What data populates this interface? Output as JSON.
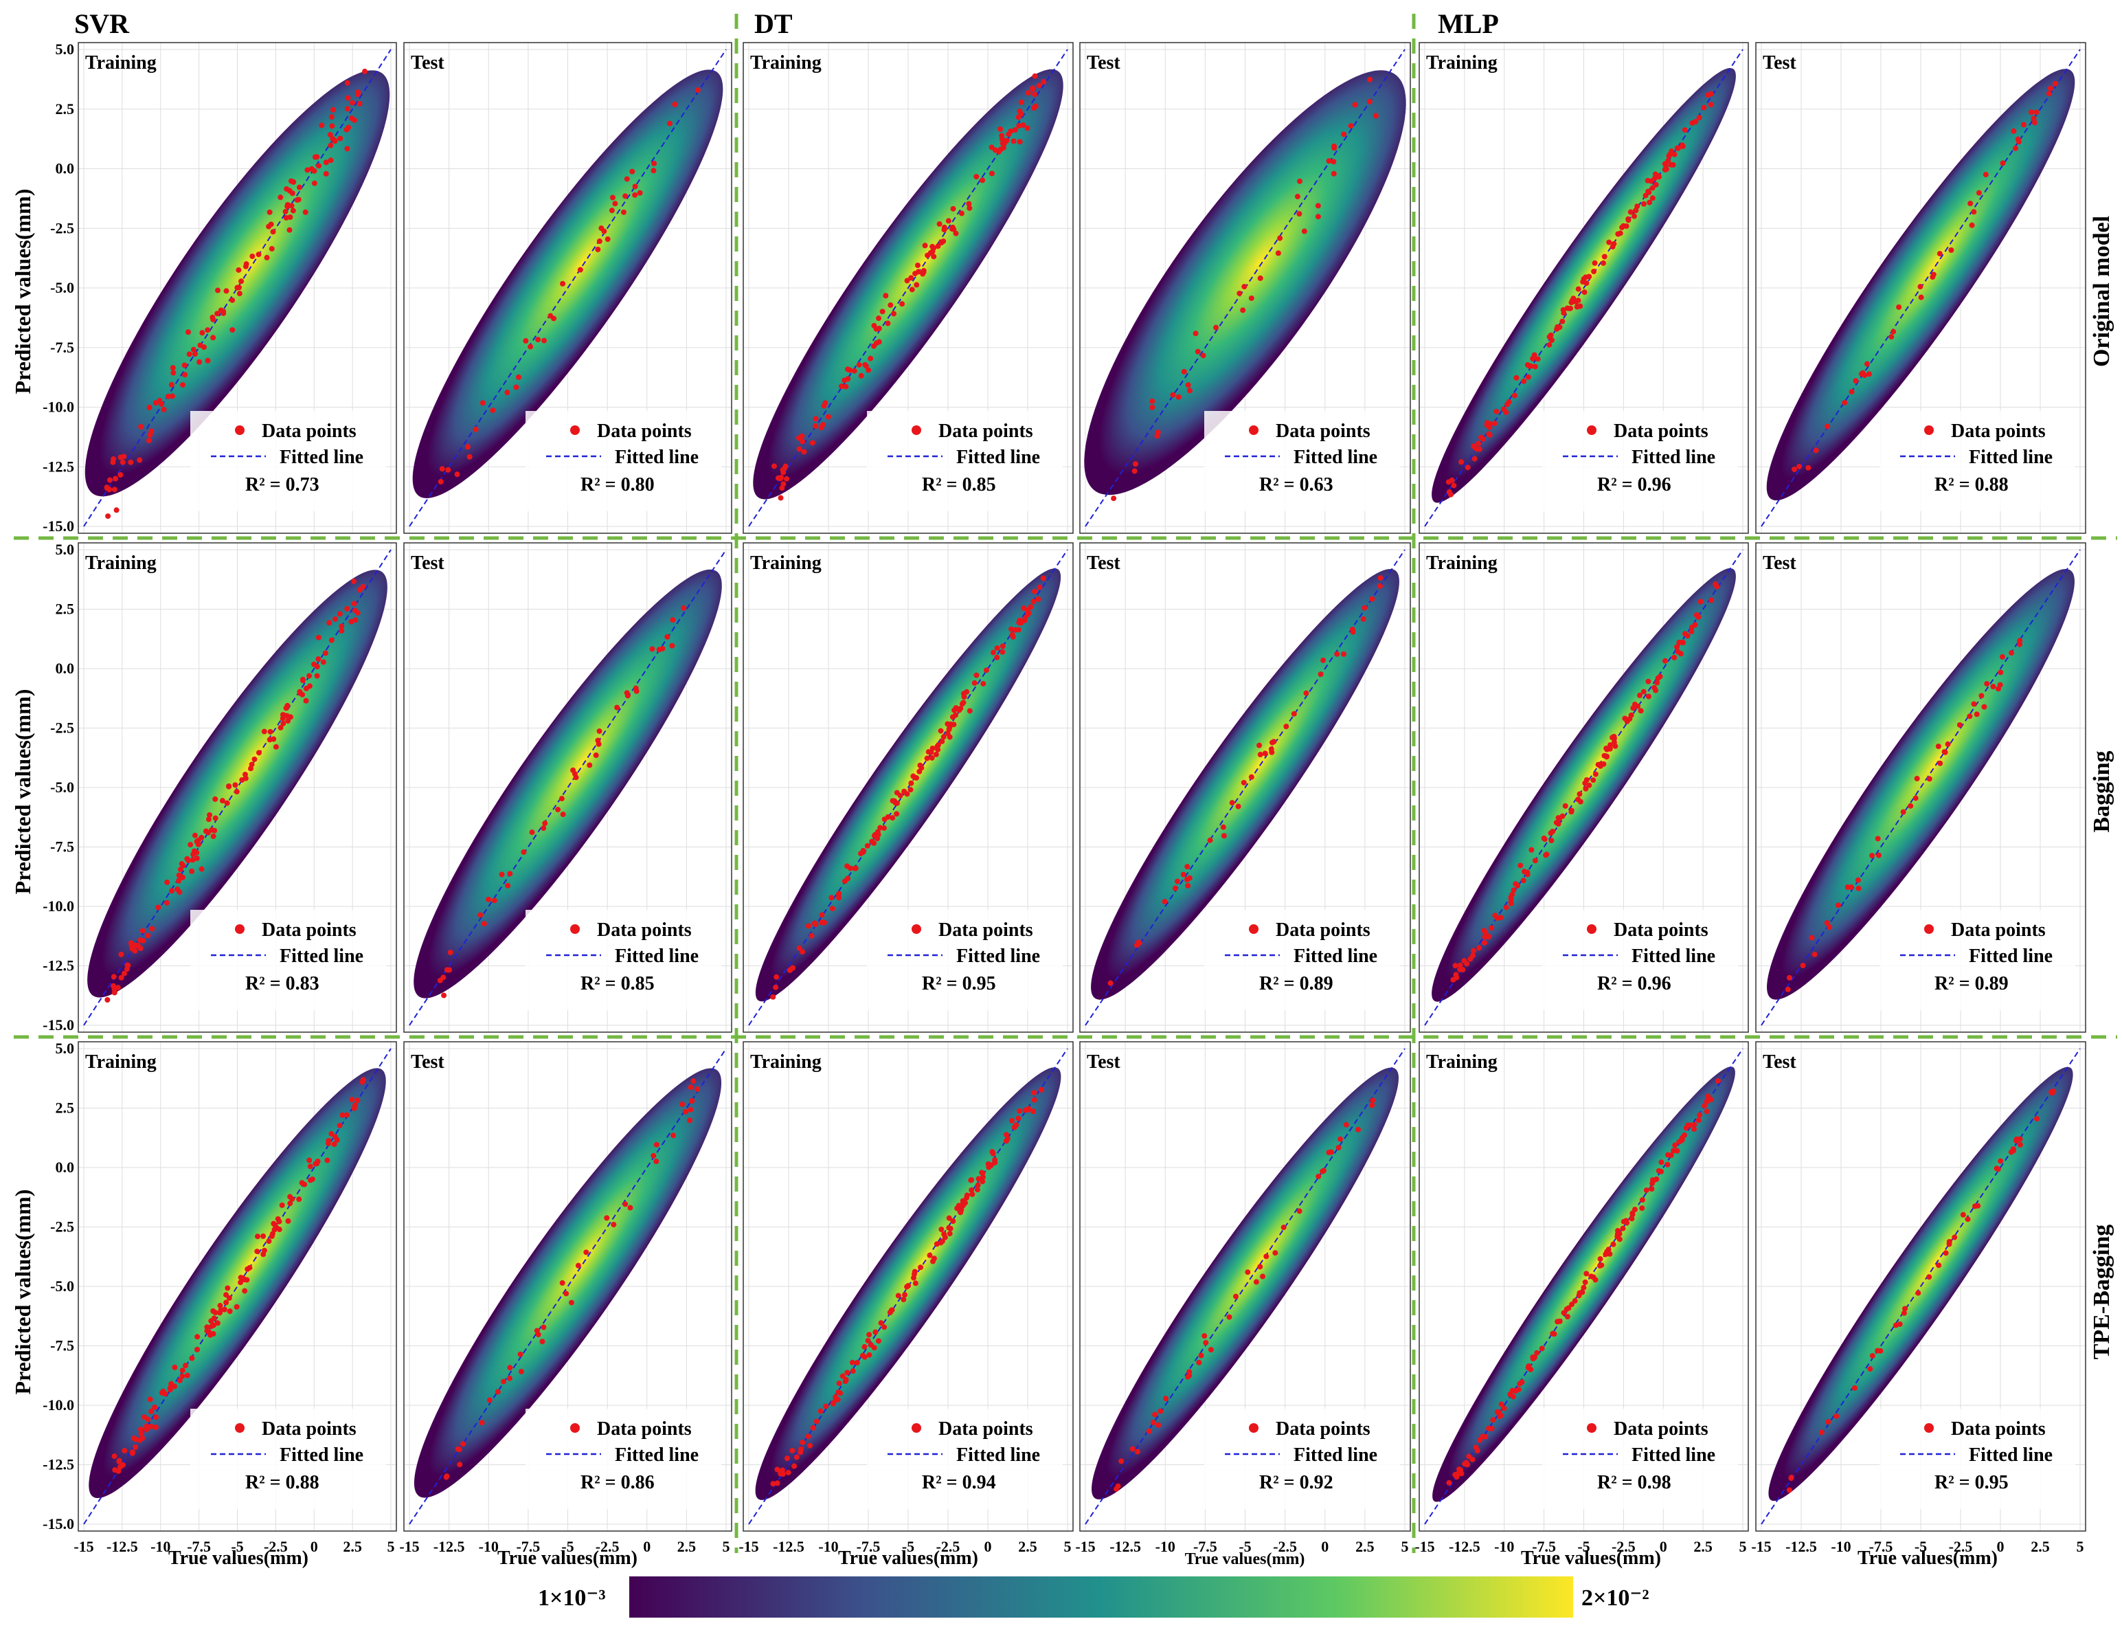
{
  "figure": {
    "model_titles": [
      "SVR",
      "DT",
      "MLP"
    ],
    "row_titles": [
      "Original model",
      "Bagging",
      "TPE-Bagging"
    ],
    "y_axis_label": "Predicted values(mm)",
    "x_axis_label": "True values(mm)",
    "colorbar": {
      "min_label": "1×10⁻³",
      "max_label": "2×10⁻²",
      "colormap": "viridis"
    },
    "colors": {
      "data_point": "#e8161b",
      "fitted_line": "#1f22d6",
      "separator": "#74b843",
      "viridis": [
        "#440154",
        "#3b528b",
        "#21918c",
        "#5ec962",
        "#fde725"
      ]
    },
    "legend": {
      "points_label": "Data points",
      "line_label": "Fitted line"
    }
  },
  "chart_data": {
    "type": "scatter",
    "title": "",
    "xlabel": "True values(mm)",
    "ylabel": "Predicted values(mm)",
    "xlim": [
      -15,
      5
    ],
    "ylim": [
      -15,
      5
    ],
    "x_ticks": [
      "-15",
      "-12.5",
      "-10",
      "-7.5",
      "-5",
      "-2.5",
      "0",
      "2.5",
      "5"
    ],
    "y_ticks": [
      "5.0",
      "2.5",
      "0.0",
      "-2.5",
      "-5.0",
      "-7.5",
      "-10.0",
      "-12.5",
      "-15.0"
    ],
    "panels": [
      {
        "model": "SVR",
        "row": "Original model",
        "subset": "Training",
        "r2": 0.73,
        "r2_text": "R² = 0.73",
        "spread": 1.9,
        "n_points": 120
      },
      {
        "model": "SVR",
        "row": "Original model",
        "subset": "Test",
        "r2": 0.8,
        "r2_text": "R² = 0.80",
        "spread": 1.6,
        "n_points": 40
      },
      {
        "model": "DT",
        "row": "Original model",
        "subset": "Training",
        "r2": 0.85,
        "r2_text": "R² = 0.85",
        "spread": 1.4,
        "n_points": 120
      },
      {
        "model": "DT",
        "row": "Original model",
        "subset": "Test",
        "r2": 0.63,
        "r2_text": "R² = 0.63",
        "spread": 2.3,
        "n_points": 40
      },
      {
        "model": "MLP",
        "row": "Original model",
        "subset": "Training",
        "r2": 0.96,
        "r2_text": "R² = 0.96",
        "spread": 0.8,
        "n_points": 120
      },
      {
        "model": "MLP",
        "row": "Original model",
        "subset": "Test",
        "r2": 0.88,
        "r2_text": "R² = 0.88",
        "spread": 1.2,
        "n_points": 40
      },
      {
        "model": "SVR",
        "row": "Bagging",
        "subset": "Training",
        "r2": 0.83,
        "r2_text": "R² = 0.83",
        "spread": 1.5,
        "n_points": 120
      },
      {
        "model": "SVR",
        "row": "Bagging",
        "subset": "Test",
        "r2": 0.85,
        "r2_text": "R² = 0.85",
        "spread": 1.4,
        "n_points": 40
      },
      {
        "model": "DT",
        "row": "Bagging",
        "subset": "Training",
        "r2": 0.95,
        "r2_text": "R² = 0.95",
        "spread": 0.85,
        "n_points": 120
      },
      {
        "model": "DT",
        "row": "Bagging",
        "subset": "Test",
        "r2": 0.89,
        "r2_text": "R² = 0.89",
        "spread": 1.15,
        "n_points": 40
      },
      {
        "model": "MLP",
        "row": "Bagging",
        "subset": "Training",
        "r2": 0.96,
        "r2_text": "R² = 0.96",
        "spread": 0.8,
        "n_points": 120
      },
      {
        "model": "MLP",
        "row": "Bagging",
        "subset": "Test",
        "r2": 0.89,
        "r2_text": "R² = 0.89",
        "spread": 1.15,
        "n_points": 40
      },
      {
        "model": "SVR",
        "row": "TPE-Bagging",
        "subset": "Training",
        "r2": 0.88,
        "r2_text": "R² = 0.88",
        "spread": 1.2,
        "n_points": 120
      },
      {
        "model": "SVR",
        "row": "TPE-Bagging",
        "subset": "Test",
        "r2": 0.86,
        "r2_text": "R² = 0.86",
        "spread": 1.3,
        "n_points": 40
      },
      {
        "model": "DT",
        "row": "TPE-Bagging",
        "subset": "Training",
        "r2": 0.94,
        "r2_text": "R² = 0.94",
        "spread": 0.9,
        "n_points": 120
      },
      {
        "model": "DT",
        "row": "TPE-Bagging",
        "subset": "Test",
        "r2": 0.92,
        "r2_text": "R² = 0.92",
        "spread": 1.0,
        "n_points": 40
      },
      {
        "model": "MLP",
        "row": "TPE-Bagging",
        "subset": "Training",
        "r2": 0.98,
        "r2_text": "R² = 0.98",
        "spread": 0.6,
        "n_points": 120
      },
      {
        "model": "MLP",
        "row": "TPE-Bagging",
        "subset": "Test",
        "r2": 0.95,
        "r2_text": "R² = 0.95",
        "spread": 0.75,
        "n_points": 40
      }
    ]
  }
}
